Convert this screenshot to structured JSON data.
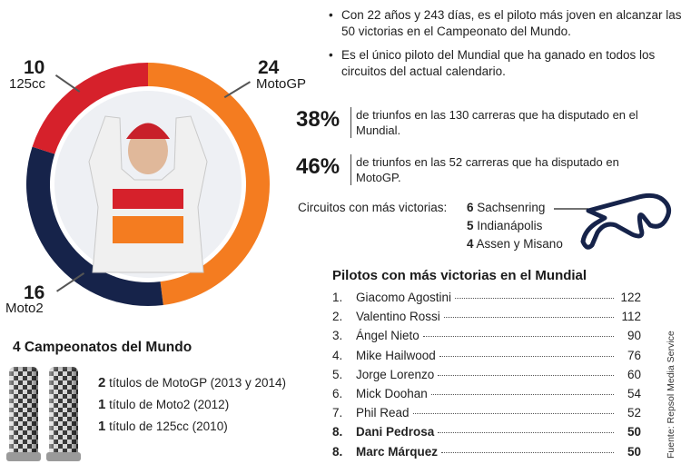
{
  "chart_data": {
    "type": "pie",
    "categories": [
      "MotoGP",
      "Moto2",
      "125cc"
    ],
    "values": [
      24,
      16,
      10
    ],
    "colors": [
      "#f47c20",
      "#16234a",
      "#d6212b"
    ],
    "labels": [
      {
        "value": "24",
        "category": "MotoGP"
      },
      {
        "value": "16",
        "category": "Moto2"
      },
      {
        "value": "10",
        "category": "125cc"
      }
    ]
  },
  "facts": [
    "Con 22 años y 243 días, es el piloto más joven en alcanzar las 50 victorias en el Campeonato del Mundo.",
    "Es el único piloto del Mundial que ha ganado en todos los circuitos del actual calendario."
  ],
  "percentages": [
    {
      "value": "38%",
      "text": "de triunfos en las 130 carreras que ha disputado en el Mundial."
    },
    {
      "value": "46%",
      "text": "de triunfos en las 52 carreras que ha disputado en MotoGP."
    }
  ],
  "circuits": {
    "label": "Circuitos con más victorias:",
    "items": [
      {
        "count": "6",
        "name": "Sachsenring"
      },
      {
        "count": "5",
        "name": "Indianápolis"
      },
      {
        "count": "4",
        "name": "Assen y Misano"
      }
    ]
  },
  "ranking": {
    "title": "Pilotos con más victorias en el Mundial",
    "rows": [
      {
        "pos": "1.",
        "name": "Giacomo Agostini",
        "wins": "122",
        "bold": false
      },
      {
        "pos": "2.",
        "name": "Valentino Rossi",
        "wins": "112",
        "bold": false
      },
      {
        "pos": "3.",
        "name": "Ángel Nieto",
        "wins": "90",
        "bold": false
      },
      {
        "pos": "4.",
        "name": "Mike Hailwood",
        "wins": "76",
        "bold": false
      },
      {
        "pos": "5.",
        "name": "Jorge Lorenzo",
        "wins": "60",
        "bold": false
      },
      {
        "pos": "6.",
        "name": "Mick Doohan",
        "wins": "54",
        "bold": false
      },
      {
        "pos": "7.",
        "name": "Phil Read",
        "wins": "52",
        "bold": false
      },
      {
        "pos": "8.",
        "name": "Dani Pedrosa",
        "wins": "50",
        "bold": true
      },
      {
        "pos": "8.",
        "name": "Marc Márquez",
        "wins": "50",
        "bold": true
      }
    ]
  },
  "championships": {
    "title": "4 Campeonatos del Mundo",
    "rows": [
      {
        "count": "2",
        "text": "títulos de MotoGP (2013 y 2014)"
      },
      {
        "count": "1",
        "text": "título de Moto2 (2012)"
      },
      {
        "count": "1",
        "text": "título de 125cc (2010)"
      }
    ]
  },
  "source": "Fuente: Repsol Media Service"
}
